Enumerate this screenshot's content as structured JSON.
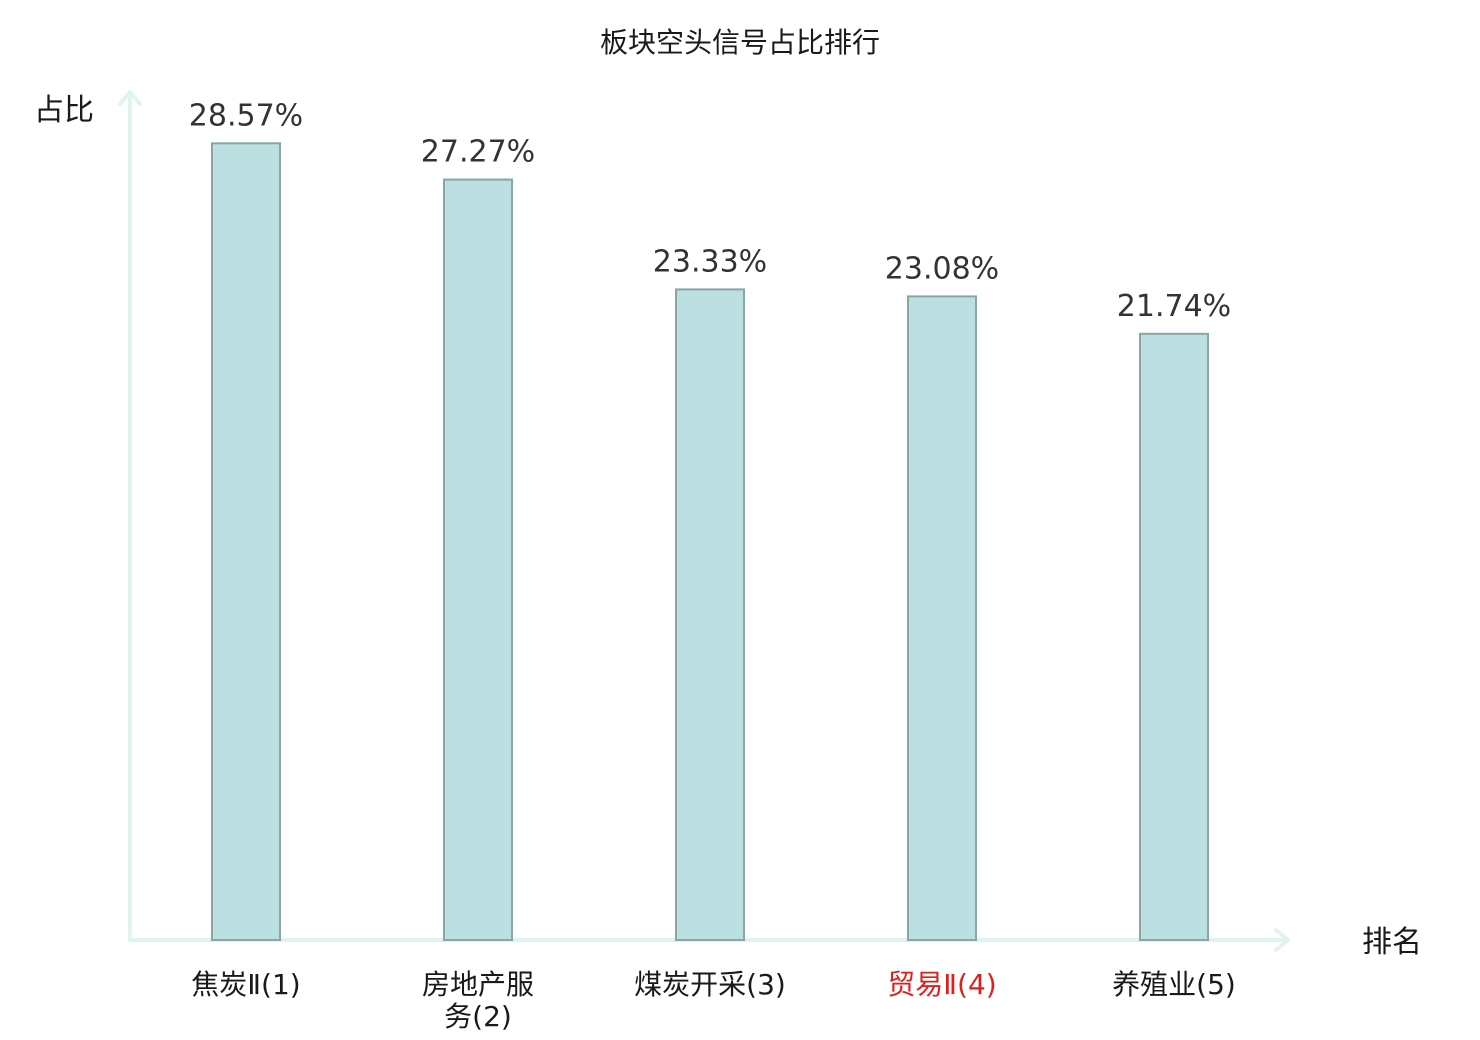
{
  "chart_data": {
    "type": "bar",
    "title": "板块空头信号占比排行",
    "ylabel": "占比",
    "xlabel": "排名",
    "categories": [
      "焦炭Ⅱ(1)",
      "房地产服务(2)",
      "煤炭开采(3)",
      "贸易Ⅱ(4)",
      "养殖业(5)"
    ],
    "category_lines": [
      [
        "焦炭Ⅱ(1)"
      ],
      [
        "房地产服",
        "务(2)"
      ],
      [
        "煤炭开采(3)"
      ],
      [
        "贸易Ⅱ(4)"
      ],
      [
        "养殖业(5)"
      ]
    ],
    "series": [
      {
        "values": [
          28.57,
          27.27,
          23.33,
          23.08,
          21.74
        ],
        "labels": [
          "28.57%",
          "27.27%",
          "23.33%",
          "23.08%",
          "21.74%"
        ]
      }
    ],
    "highlight_index": 3,
    "ylim": [
      0,
      29.8
    ],
    "grid": false,
    "legend": "none"
  },
  "colors": {
    "bar_fill": "#bce0e1",
    "bar_stroke": "#8aa5a6",
    "axis": "#e0f3f0",
    "highlight_text": "#e01e1e",
    "label_text": "#333333"
  }
}
